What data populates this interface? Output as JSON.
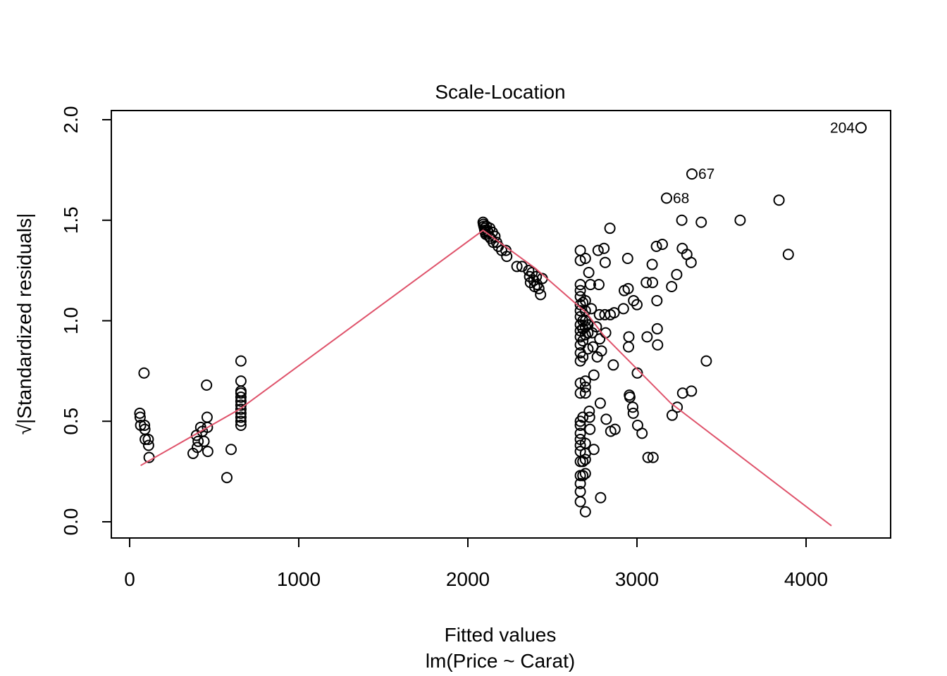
{
  "chart_data": {
    "type": "scatter",
    "title": "Scale-Location",
    "xlabel": "Fitted values",
    "xlabel_sub": "lm(Price ~ Carat)",
    "ylabel": "√|Standardized residuals|",
    "xlim": [
      -100,
      4500
    ],
    "ylim": [
      -0.08,
      2.04
    ],
    "x_ticks": [
      0,
      1000,
      2000,
      3000,
      4000
    ],
    "x_tick_labels": [
      "0",
      "1000",
      "2000",
      "3000",
      "4000"
    ],
    "y_ticks": [
      0.0,
      0.5,
      1.0,
      1.5,
      2.0
    ],
    "y_tick_labels": [
      "0.0",
      "0.5",
      "1.0",
      "1.5",
      "2.0"
    ],
    "grid": false,
    "smooth_color": "#DF536B",
    "point_labels": [
      {
        "x": 4325,
        "y": 1.96,
        "text": "204",
        "side": "left"
      },
      {
        "x": 3325,
        "y": 1.73,
        "text": "67",
        "side": "right"
      },
      {
        "x": 3175,
        "y": 1.61,
        "text": "68",
        "side": "right"
      }
    ],
    "smooth_line": [
      {
        "x": 65,
        "y": 0.28
      },
      {
        "x": 650,
        "y": 0.56
      },
      {
        "x": 2090,
        "y": 1.45
      },
      {
        "x": 2400,
        "y": 1.26
      },
      {
        "x": 2700,
        "y": 1.04
      },
      {
        "x": 2800,
        "y": 0.93
      },
      {
        "x": 3200,
        "y": 0.59
      },
      {
        "x": 4150,
        "y": -0.02
      }
    ],
    "points": [
      {
        "x": 60,
        "y": 0.54
      },
      {
        "x": 62,
        "y": 0.52
      },
      {
        "x": 65,
        "y": 0.48
      },
      {
        "x": 85,
        "y": 0.74
      },
      {
        "x": 88,
        "y": 0.48
      },
      {
        "x": 90,
        "y": 0.46
      },
      {
        "x": 92,
        "y": 0.41
      },
      {
        "x": 110,
        "y": 0.41
      },
      {
        "x": 112,
        "y": 0.38
      },
      {
        "x": 115,
        "y": 0.32
      },
      {
        "x": 375,
        "y": 0.34
      },
      {
        "x": 395,
        "y": 0.43
      },
      {
        "x": 400,
        "y": 0.37
      },
      {
        "x": 405,
        "y": 0.4
      },
      {
        "x": 420,
        "y": 0.47
      },
      {
        "x": 430,
        "y": 0.45
      },
      {
        "x": 440,
        "y": 0.4
      },
      {
        "x": 455,
        "y": 0.68
      },
      {
        "x": 458,
        "y": 0.52
      },
      {
        "x": 460,
        "y": 0.47
      },
      {
        "x": 462,
        "y": 0.35
      },
      {
        "x": 575,
        "y": 0.22
      },
      {
        "x": 600,
        "y": 0.36
      },
      {
        "x": 658,
        "y": 0.8
      },
      {
        "x": 658,
        "y": 0.7
      },
      {
        "x": 658,
        "y": 0.65
      },
      {
        "x": 658,
        "y": 0.64
      },
      {
        "x": 658,
        "y": 0.62
      },
      {
        "x": 658,
        "y": 0.6
      },
      {
        "x": 658,
        "y": 0.58
      },
      {
        "x": 658,
        "y": 0.56
      },
      {
        "x": 658,
        "y": 0.54
      },
      {
        "x": 658,
        "y": 0.52
      },
      {
        "x": 658,
        "y": 0.5
      },
      {
        "x": 658,
        "y": 0.48
      },
      {
        "x": 2090,
        "y": 1.49
      },
      {
        "x": 2092,
        "y": 1.48
      },
      {
        "x": 2095,
        "y": 1.47
      },
      {
        "x": 2098,
        "y": 1.46
      },
      {
        "x": 2100,
        "y": 1.45
      },
      {
        "x": 2103,
        "y": 1.44
      },
      {
        "x": 2106,
        "y": 1.43
      },
      {
        "x": 2110,
        "y": 1.47
      },
      {
        "x": 2115,
        "y": 1.45
      },
      {
        "x": 2120,
        "y": 1.44
      },
      {
        "x": 2125,
        "y": 1.42
      },
      {
        "x": 2130,
        "y": 1.46
      },
      {
        "x": 2135,
        "y": 1.41
      },
      {
        "x": 2145,
        "y": 1.44
      },
      {
        "x": 2150,
        "y": 1.39
      },
      {
        "x": 2160,
        "y": 1.42
      },
      {
        "x": 2170,
        "y": 1.39
      },
      {
        "x": 2180,
        "y": 1.37
      },
      {
        "x": 2200,
        "y": 1.35
      },
      {
        "x": 2225,
        "y": 1.35
      },
      {
        "x": 2230,
        "y": 1.32
      },
      {
        "x": 2290,
        "y": 1.27
      },
      {
        "x": 2320,
        "y": 1.27
      },
      {
        "x": 2360,
        "y": 1.25
      },
      {
        "x": 2365,
        "y": 1.22
      },
      {
        "x": 2370,
        "y": 1.19
      },
      {
        "x": 2380,
        "y": 1.24
      },
      {
        "x": 2390,
        "y": 1.2
      },
      {
        "x": 2395,
        "y": 1.17
      },
      {
        "x": 2405,
        "y": 1.22
      },
      {
        "x": 2410,
        "y": 1.18
      },
      {
        "x": 2420,
        "y": 1.16
      },
      {
        "x": 2430,
        "y": 1.13
      },
      {
        "x": 2440,
        "y": 1.21
      },
      {
        "x": 2665,
        "y": 1.35
      },
      {
        "x": 2665,
        "y": 1.3
      },
      {
        "x": 2665,
        "y": 1.18
      },
      {
        "x": 2665,
        "y": 1.15
      },
      {
        "x": 2665,
        "y": 1.12
      },
      {
        "x": 2665,
        "y": 1.08
      },
      {
        "x": 2665,
        "y": 1.05
      },
      {
        "x": 2665,
        "y": 1.02
      },
      {
        "x": 2665,
        "y": 0.98
      },
      {
        "x": 2665,
        "y": 0.95
      },
      {
        "x": 2665,
        "y": 0.92
      },
      {
        "x": 2665,
        "y": 0.88
      },
      {
        "x": 2665,
        "y": 0.84
      },
      {
        "x": 2665,
        "y": 0.8
      },
      {
        "x": 2665,
        "y": 0.69
      },
      {
        "x": 2665,
        "y": 0.64
      },
      {
        "x": 2665,
        "y": 0.5
      },
      {
        "x": 2665,
        "y": 0.48
      },
      {
        "x": 2665,
        "y": 0.44
      },
      {
        "x": 2665,
        "y": 0.41
      },
      {
        "x": 2665,
        "y": 0.38
      },
      {
        "x": 2665,
        "y": 0.35
      },
      {
        "x": 2665,
        "y": 0.3
      },
      {
        "x": 2665,
        "y": 0.23
      },
      {
        "x": 2665,
        "y": 0.19
      },
      {
        "x": 2665,
        "y": 0.15
      },
      {
        "x": 2665,
        "y": 0.1
      },
      {
        "x": 2680,
        "y": 1.09
      },
      {
        "x": 2680,
        "y": 1.0
      },
      {
        "x": 2680,
        "y": 0.96
      },
      {
        "x": 2680,
        "y": 0.9
      },
      {
        "x": 2680,
        "y": 0.82
      },
      {
        "x": 2680,
        "y": 0.52
      },
      {
        "x": 2680,
        "y": 0.3
      },
      {
        "x": 2680,
        "y": 0.23
      },
      {
        "x": 2695,
        "y": 1.31
      },
      {
        "x": 2695,
        "y": 1.1
      },
      {
        "x": 2695,
        "y": 1.05
      },
      {
        "x": 2695,
        "y": 1.0
      },
      {
        "x": 2695,
        "y": 0.97
      },
      {
        "x": 2695,
        "y": 0.93
      },
      {
        "x": 2695,
        "y": 0.7
      },
      {
        "x": 2695,
        "y": 0.67
      },
      {
        "x": 2695,
        "y": 0.64
      },
      {
        "x": 2695,
        "y": 0.39
      },
      {
        "x": 2695,
        "y": 0.34
      },
      {
        "x": 2695,
        "y": 0.31
      },
      {
        "x": 2695,
        "y": 0.24
      },
      {
        "x": 2695,
        "y": 0.05
      },
      {
        "x": 2710,
        "y": 0.98
      },
      {
        "x": 2710,
        "y": 0.94
      },
      {
        "x": 2710,
        "y": 0.86
      },
      {
        "x": 2715,
        "y": 1.24
      },
      {
        "x": 2718,
        "y": 0.55
      },
      {
        "x": 2720,
        "y": 0.52
      },
      {
        "x": 2722,
        "y": 0.46
      },
      {
        "x": 2725,
        "y": 1.18
      },
      {
        "x": 2730,
        "y": 1.06
      },
      {
        "x": 2735,
        "y": 0.94
      },
      {
        "x": 2740,
        "y": 0.87
      },
      {
        "x": 2745,
        "y": 0.73
      },
      {
        "x": 2745,
        "y": 0.36
      },
      {
        "x": 2760,
        "y": 0.97
      },
      {
        "x": 2765,
        "y": 0.82
      },
      {
        "x": 2770,
        "y": 1.35
      },
      {
        "x": 2775,
        "y": 1.18
      },
      {
        "x": 2778,
        "y": 1.03
      },
      {
        "x": 2780,
        "y": 0.91
      },
      {
        "x": 2783,
        "y": 0.59
      },
      {
        "x": 2785,
        "y": 0.12
      },
      {
        "x": 2790,
        "y": 0.85
      },
      {
        "x": 2805,
        "y": 1.36
      },
      {
        "x": 2810,
        "y": 1.03
      },
      {
        "x": 2812,
        "y": 1.29
      },
      {
        "x": 2815,
        "y": 0.94
      },
      {
        "x": 2818,
        "y": 0.51
      },
      {
        "x": 2840,
        "y": 1.46
      },
      {
        "x": 2842,
        "y": 1.03
      },
      {
        "x": 2845,
        "y": 0.45
      },
      {
        "x": 2860,
        "y": 0.78
      },
      {
        "x": 2865,
        "y": 1.04
      },
      {
        "x": 2870,
        "y": 0.46
      },
      {
        "x": 2920,
        "y": 1.06
      },
      {
        "x": 2925,
        "y": 1.15
      },
      {
        "x": 2945,
        "y": 1.31
      },
      {
        "x": 2948,
        "y": 1.16
      },
      {
        "x": 2950,
        "y": 0.87
      },
      {
        "x": 2952,
        "y": 0.92
      },
      {
        "x": 2955,
        "y": 0.63
      },
      {
        "x": 2958,
        "y": 0.62
      },
      {
        "x": 2975,
        "y": 0.57
      },
      {
        "x": 2978,
        "y": 0.54
      },
      {
        "x": 2980,
        "y": 1.1
      },
      {
        "x": 3000,
        "y": 1.08
      },
      {
        "x": 3002,
        "y": 0.74
      },
      {
        "x": 3004,
        "y": 0.48
      },
      {
        "x": 3030,
        "y": 0.44
      },
      {
        "x": 3055,
        "y": 1.19
      },
      {
        "x": 3060,
        "y": 0.92
      },
      {
        "x": 3065,
        "y": 0.32
      },
      {
        "x": 3090,
        "y": 1.28
      },
      {
        "x": 3092,
        "y": 1.19
      },
      {
        "x": 3095,
        "y": 0.32
      },
      {
        "x": 3115,
        "y": 1.37
      },
      {
        "x": 3118,
        "y": 1.1
      },
      {
        "x": 3120,
        "y": 0.96
      },
      {
        "x": 3122,
        "y": 0.88
      },
      {
        "x": 3150,
        "y": 1.38
      },
      {
        "x": 3175,
        "y": 1.61
      },
      {
        "x": 3205,
        "y": 1.17
      },
      {
        "x": 3208,
        "y": 0.53
      },
      {
        "x": 3235,
        "y": 1.23
      },
      {
        "x": 3238,
        "y": 0.57
      },
      {
        "x": 3265,
        "y": 1.5
      },
      {
        "x": 3268,
        "y": 1.36
      },
      {
        "x": 3270,
        "y": 0.64
      },
      {
        "x": 3295,
        "y": 1.33
      },
      {
        "x": 3320,
        "y": 1.29
      },
      {
        "x": 3322,
        "y": 0.65
      },
      {
        "x": 3325,
        "y": 1.73
      },
      {
        "x": 3380,
        "y": 1.49
      },
      {
        "x": 3410,
        "y": 0.8
      },
      {
        "x": 3610,
        "y": 1.5
      },
      {
        "x": 3840,
        "y": 1.6
      },
      {
        "x": 3895,
        "y": 1.33
      },
      {
        "x": 4325,
        "y": 1.96
      }
    ]
  }
}
